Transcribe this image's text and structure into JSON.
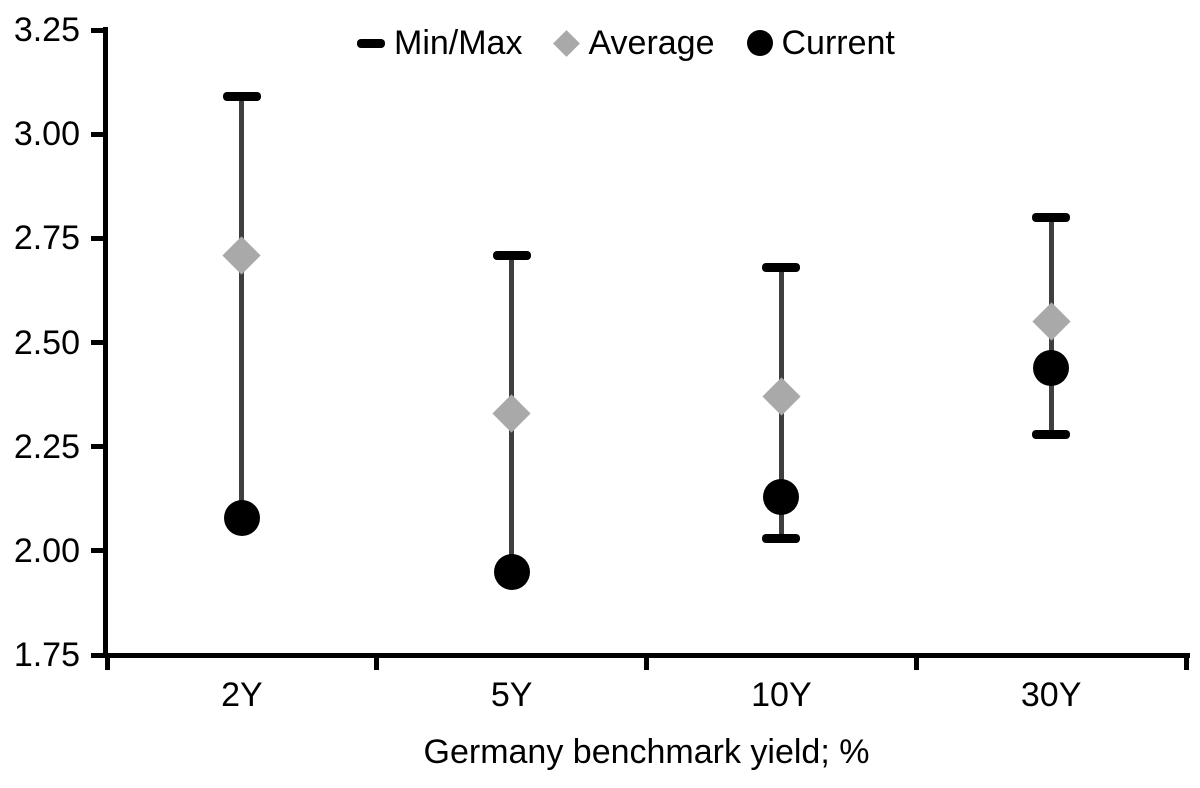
{
  "chart_data": {
    "type": "scatter",
    "title": "",
    "xlabel": "Germany benchmark yield; %",
    "ylabel": "",
    "ylim": [
      1.75,
      3.25
    ],
    "ytick_labels": [
      "3.25",
      "3.00",
      "2.75",
      "2.50",
      "2.25",
      "2.00",
      "1.75"
    ],
    "categories": [
      "2Y",
      "5Y",
      "10Y",
      "30Y"
    ],
    "series": [
      {
        "name": "Min/Max",
        "type": "range",
        "min": [
          2.08,
          1.95,
          2.03,
          2.28
        ],
        "max": [
          3.09,
          2.71,
          2.68,
          2.8
        ]
      },
      {
        "name": "Average",
        "type": "diamond",
        "values": [
          2.71,
          2.33,
          2.37,
          2.55
        ]
      },
      {
        "name": "Current",
        "type": "circle",
        "values": [
          2.08,
          1.95,
          2.13,
          2.44
        ]
      }
    ],
    "legend": [
      {
        "label": "Min/Max",
        "marker": "dash"
      },
      {
        "label": "Average",
        "marker": "diamond"
      },
      {
        "label": "Current",
        "marker": "circle"
      }
    ],
    "legend_position": "top-center",
    "grid": false,
    "colors": {
      "marker_black": "#000000",
      "range_line": "#3F3F3F",
      "average_gray": "#A9A9A9",
      "background": "#FFFFFF"
    }
  }
}
